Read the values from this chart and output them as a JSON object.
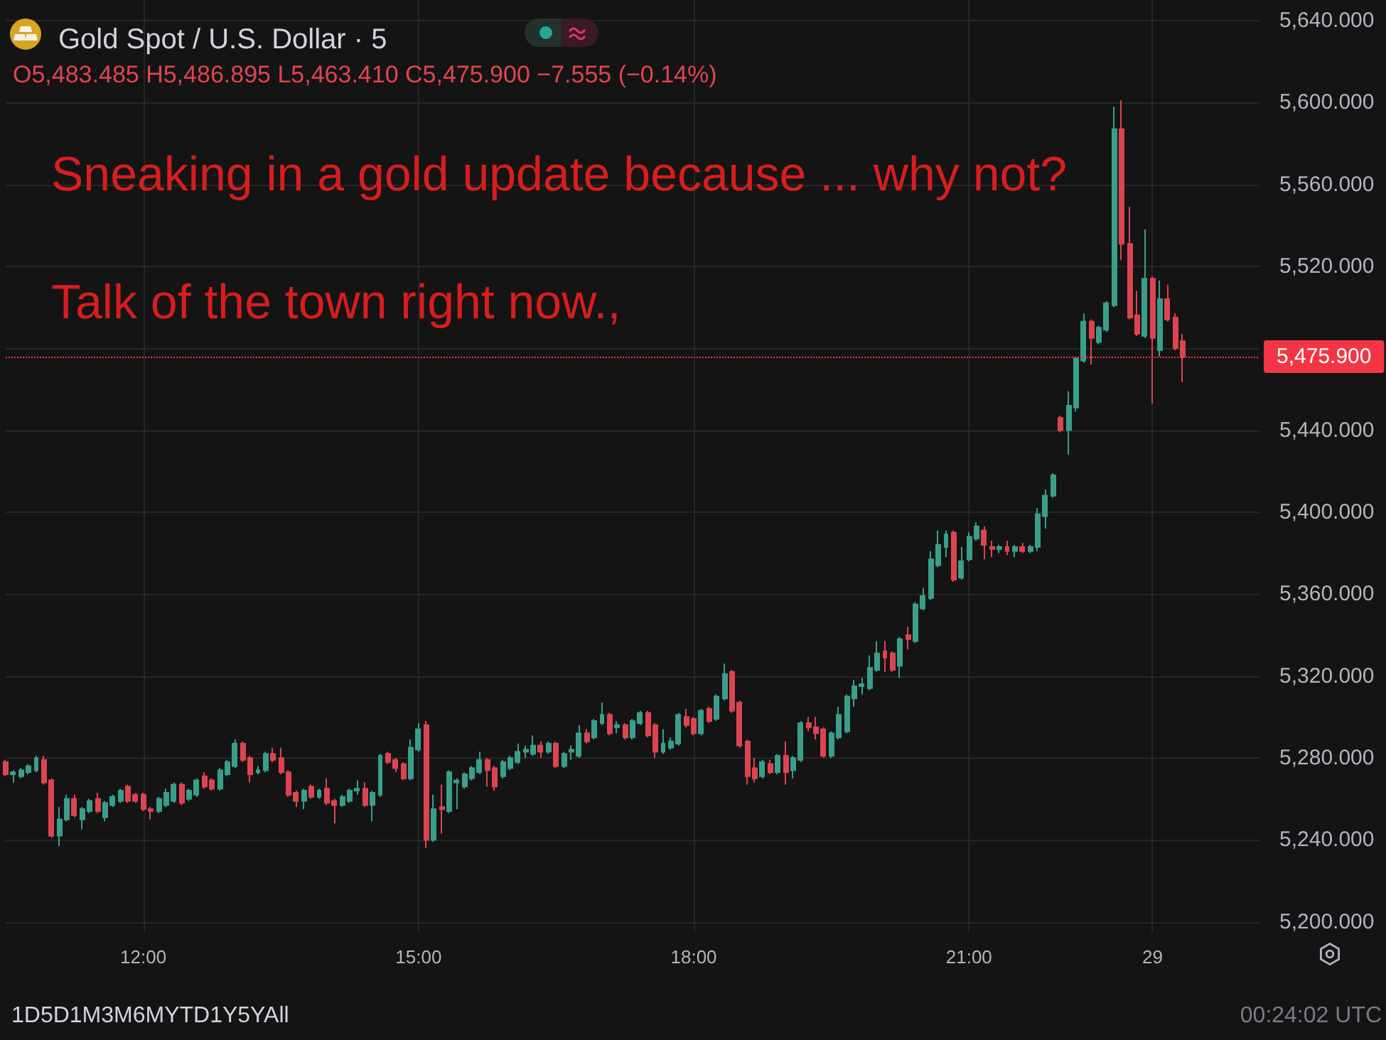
{
  "chart_data": {
    "type": "candlestick",
    "title": "Gold Spot / U.S. Dollar · 5",
    "subtitle": "O5,483.485 H5,486.895 L5,463.410 C5,475.900 −7.555 (−0.14%)",
    "annotations": [
      "Sneaking in a gold update because ... why not?",
      "Talk of the town right now.,",
      "1D5D1M3M6MYTD1Y5YAll",
      "00:24:02 UTC"
    ],
    "categories": [
      null,
      null,
      null,
      null,
      null,
      null,
      null,
      null,
      null,
      null,
      null,
      null,
      null,
      null,
      null,
      null,
      null,
      null,
      "12:00",
      null,
      null,
      null,
      null,
      null,
      null,
      null,
      null,
      null,
      null,
      null,
      null,
      null,
      null,
      null,
      null,
      null,
      null,
      null,
      null,
      null,
      null,
      null,
      null,
      null,
      null,
      null,
      null,
      null,
      null,
      null,
      null,
      null,
      null,
      null,
      "15:00",
      null,
      null,
      null,
      null,
      null,
      null,
      null,
      null,
      null,
      null,
      null,
      null,
      null,
      null,
      null,
      null,
      null,
      null,
      null,
      null,
      null,
      null,
      null,
      null,
      null,
      null,
      null,
      null,
      null,
      null,
      null,
      null,
      null,
      null,
      null,
      "18:00",
      null,
      null,
      null,
      null,
      null,
      null,
      null,
      null,
      null,
      null,
      null,
      null,
      null,
      null,
      null,
      null,
      null,
      null,
      null,
      null,
      null,
      null,
      null,
      null,
      null,
      null,
      null,
      null,
      null,
      null,
      null,
      null,
      null,
      null,
      null,
      "21:00",
      null,
      null,
      null,
      null,
      null,
      null,
      null,
      null,
      null,
      null,
      null,
      null,
      null,
      null,
      null,
      null,
      null,
      null,
      null,
      null,
      null,
      null,
      null,
      "29",
      null,
      null,
      null,
      null,
      null,
      null,
      null,
      null,
      null,
      null,
      null,
      null,
      null,
      null
    ],
    "ohlc": [
      [
        5278,
        5279,
        5271,
        5272
      ],
      [
        5272,
        5274,
        5268,
        5273
      ],
      [
        5271,
        5275,
        5270,
        5274
      ],
      [
        5273,
        5277,
        5272,
        5276
      ],
      [
        5274,
        5281,
        5273,
        5280
      ],
      [
        5279,
        5281,
        5267,
        5268
      ],
      [
        5269,
        5270,
        5241,
        5242
      ],
      [
        5242,
        5256,
        5237,
        5250
      ],
      [
        5250,
        5262,
        5249,
        5260
      ],
      [
        5260,
        5262,
        5251,
        5252
      ],
      [
        5250,
        5256,
        5245,
        5255
      ],
      [
        5254,
        5260,
        5253,
        5259
      ],
      [
        5260,
        5263,
        5253,
        5254
      ],
      [
        5251,
        5259,
        5249,
        5258
      ],
      [
        5257,
        5262,
        5256,
        5261
      ],
      [
        5259,
        5265,
        5258,
        5264
      ],
      [
        5266,
        5267,
        5258,
        5259
      ],
      [
        5262,
        5263,
        5258,
        5259
      ],
      [
        5262,
        5263,
        5254,
        5255
      ],
      [
        5255,
        5256,
        5250,
        5254
      ],
      [
        5254,
        5261,
        5253,
        5260
      ],
      [
        5257,
        5265,
        5256,
        5263
      ],
      [
        5259,
        5268,
        5258,
        5267
      ],
      [
        5267,
        5268,
        5257,
        5258
      ],
      [
        5260,
        5265,
        5259,
        5264
      ],
      [
        5262,
        5270,
        5261,
        5269
      ],
      [
        5271,
        5273,
        5265,
        5266
      ],
      [
        5269,
        5270,
        5264,
        5265
      ],
      [
        5265,
        5275,
        5264,
        5274
      ],
      [
        5272,
        5279,
        5271,
        5278
      ],
      [
        5276,
        5289,
        5275,
        5287
      ],
      [
        5287,
        5288,
        5278,
        5279
      ],
      [
        5280,
        5281,
        5268,
        5272
      ],
      [
        5273,
        5276,
        5272,
        5274
      ],
      [
        5274,
        5283,
        5273,
        5282
      ],
      [
        5282,
        5285,
        5278,
        5279
      ],
      [
        5280,
        5285,
        5272,
        5273
      ],
      [
        5273,
        5274,
        5261,
        5262
      ],
      [
        5263,
        5264,
        5256,
        5259
      ],
      [
        5259,
        5265,
        5255,
        5264
      ],
      [
        5266,
        5267,
        5260,
        5261
      ],
      [
        5261,
        5265,
        5260,
        5264
      ],
      [
        5265,
        5270,
        5257,
        5258
      ],
      [
        5259,
        5260,
        5248,
        5257
      ],
      [
        5257,
        5262,
        5256,
        5261
      ],
      [
        5259,
        5265,
        5258,
        5264
      ],
      [
        5264,
        5269,
        5262,
        5265
      ],
      [
        5265,
        5268,
        5256,
        5257
      ],
      [
        5257,
        5264,
        5249,
        5263
      ],
      [
        5262,
        5282,
        5261,
        5281
      ],
      [
        5282,
        5283,
        5277,
        5278
      ],
      [
        5279,
        5280,
        5273,
        5275
      ],
      [
        5277,
        5278,
        5269,
        5270
      ],
      [
        5270,
        5289,
        5269,
        5285
      ],
      [
        5284,
        5297,
        5283,
        5294
      ],
      [
        5296,
        5298,
        5236,
        5240
      ],
      [
        5240,
        5262,
        5239,
        5255
      ],
      [
        5256,
        5267,
        5243,
        5255
      ],
      [
        5254,
        5274,
        5253,
        5273
      ],
      [
        5268,
        5270,
        5255,
        5269
      ],
      [
        5266,
        5273,
        5265,
        5272
      ],
      [
        5270,
        5276,
        5269,
        5275
      ],
      [
        5273,
        5283,
        5272,
        5279
      ],
      [
        5279,
        5280,
        5266,
        5274
      ],
      [
        5275,
        5276,
        5264,
        5266
      ],
      [
        5271,
        5279,
        5270,
        5278
      ],
      [
        5275,
        5281,
        5274,
        5280
      ],
      [
        5278,
        5287,
        5277,
        5283
      ],
      [
        5283,
        5286,
        5280,
        5284
      ],
      [
        5282,
        5291,
        5281,
        5286
      ],
      [
        5286,
        5288,
        5280,
        5283
      ],
      [
        5283,
        5288,
        5282,
        5287
      ],
      [
        5287,
        5288,
        5275,
        5276
      ],
      [
        5276,
        5283,
        5275,
        5282
      ],
      [
        5283,
        5286,
        5279,
        5284
      ],
      [
        5281,
        5296,
        5280,
        5292
      ],
      [
        5292,
        5294,
        5287,
        5288
      ],
      [
        5290,
        5299,
        5289,
        5298
      ],
      [
        5297,
        5307,
        5296,
        5301
      ],
      [
        5301,
        5302,
        5291,
        5292
      ],
      [
        5295,
        5298,
        5292,
        5296
      ],
      [
        5296,
        5297,
        5289,
        5290
      ],
      [
        5290,
        5299,
        5289,
        5298
      ],
      [
        5297,
        5303,
        5296,
        5302
      ],
      [
        5302,
        5303,
        5290,
        5291
      ],
      [
        5296,
        5297,
        5280,
        5283
      ],
      [
        5283,
        5294,
        5282,
        5287
      ],
      [
        5285,
        5290,
        5284,
        5288
      ],
      [
        5287,
        5302,
        5286,
        5301
      ],
      [
        5300,
        5304,
        5295,
        5296
      ],
      [
        5299,
        5300,
        5291,
        5292
      ],
      [
        5292,
        5304,
        5291,
        5303
      ],
      [
        5304,
        5305,
        5297,
        5298
      ],
      [
        5299,
        5311,
        5298,
        5310
      ],
      [
        5309,
        5326,
        5308,
        5321
      ],
      [
        5322,
        5323,
        5302,
        5303
      ],
      [
        5307,
        5308,
        5285,
        5286
      ],
      [
        5288,
        5289,
        5267,
        5271
      ],
      [
        5275,
        5280,
        5268,
        5270
      ],
      [
        5271,
        5279,
        5270,
        5278
      ],
      [
        5277,
        5279,
        5272,
        5273
      ],
      [
        5273,
        5282,
        5272,
        5281
      ],
      [
        5281,
        5288,
        5267,
        5273
      ],
      [
        5274,
        5281,
        5270,
        5280
      ],
      [
        5279,
        5298,
        5278,
        5297
      ],
      [
        5297,
        5300,
        5293,
        5295
      ],
      [
        5295,
        5300,
        5289,
        5292
      ],
      [
        5294,
        5295,
        5280,
        5281
      ],
      [
        5281,
        5293,
        5280,
        5292
      ],
      [
        5290,
        5305,
        5289,
        5301
      ],
      [
        5293,
        5311,
        5292,
        5310
      ],
      [
        5309,
        5318,
        5305,
        5315
      ],
      [
        5315,
        5319,
        5311,
        5316
      ],
      [
        5314,
        5330,
        5313,
        5324
      ],
      [
        5323,
        5337,
        5322,
        5331
      ],
      [
        5332,
        5337,
        5322,
        5329
      ],
      [
        5331,
        5332,
        5322,
        5323
      ],
      [
        5325,
        5339,
        5319,
        5338
      ],
      [
        5340,
        5344,
        5333,
        5338
      ],
      [
        5337,
        5356,
        5336,
        5355
      ],
      [
        5353,
        5363,
        5352,
        5359
      ],
      [
        5358,
        5381,
        5357,
        5377
      ],
      [
        5374,
        5391,
        5373,
        5384
      ],
      [
        5383,
        5391,
        5378,
        5389
      ],
      [
        5390,
        5391,
        5366,
        5367
      ],
      [
        5368,
        5383,
        5367,
        5376
      ],
      [
        5377,
        5390,
        5376,
        5388
      ],
      [
        5387,
        5395,
        5386,
        5393
      ],
      [
        5391,
        5393,
        5377,
        5384
      ],
      [
        5383,
        5386,
        5378,
        5382
      ],
      [
        5382,
        5384,
        5380,
        5383
      ],
      [
        5383,
        5386,
        5379,
        5381
      ],
      [
        5381,
        5384,
        5378,
        5383
      ],
      [
        5383,
        5385,
        5380,
        5381
      ],
      [
        5381,
        5384,
        5380,
        5383
      ],
      [
        5383,
        5402,
        5381,
        5399
      ],
      [
        5398,
        5411,
        5392,
        5408
      ],
      [
        5408,
        5419,
        5407,
        5418
      ],
      [
        5446,
        5447,
        5439,
        5440
      ],
      [
        5440,
        5459,
        5428,
        5452
      ],
      [
        5451,
        5476,
        5449,
        5475
      ],
      [
        5474,
        5497,
        5473,
        5493
      ],
      [
        5493,
        5494,
        5472,
        5485
      ],
      [
        5483,
        5491,
        5482,
        5490
      ],
      [
        5489,
        5503,
        5488,
        5502
      ],
      [
        5501,
        5598,
        5500,
        5587
      ],
      [
        5587,
        5601,
        5523,
        5531
      ],
      [
        5531,
        5549,
        5494,
        5495
      ],
      [
        5496,
        5508,
        5486,
        5487
      ],
      [
        5486,
        5538,
        5485,
        5514
      ],
      [
        5514,
        5515,
        5453,
        5485
      ],
      [
        5479,
        5513,
        5476,
        5504
      ],
      [
        5504,
        5511,
        5493,
        5494
      ],
      [
        5495,
        5497,
        5479,
        5480
      ],
      [
        5483.485,
        5486.895,
        5463.41,
        5475.9
      ],
      null,
      null,
      null,
      null,
      null,
      null,
      null,
      null,
      null,
      null
    ],
    "ylim": [
      5195,
      5650
    ],
    "yticks": [
      {
        "value": 5200,
        "label": "5,200.000"
      },
      {
        "value": 5240,
        "label": "5,240.000"
      },
      {
        "value": 5280,
        "label": "5,280.000"
      },
      {
        "value": 5320,
        "label": "5,320.000"
      },
      {
        "value": 5360,
        "label": "5,360.000"
      },
      {
        "value": 5400,
        "label": "5,400.000"
      },
      {
        "value": 5440,
        "label": "5,440.000"
      },
      {
        "value": 5480,
        "label": null
      },
      {
        "value": 5520,
        "label": "5,520.000"
      },
      {
        "value": 5560,
        "label": "5,560.000"
      },
      {
        "value": 5600,
        "label": "5,600.000"
      },
      {
        "value": 5640,
        "label": "5,640.000"
      }
    ],
    "grid": true,
    "ref_lines": [
      {
        "axis": "y",
        "value": 5475.9,
        "label": "5,475.900",
        "color": "#f23645",
        "line_style": "dotted"
      }
    ]
  }
}
